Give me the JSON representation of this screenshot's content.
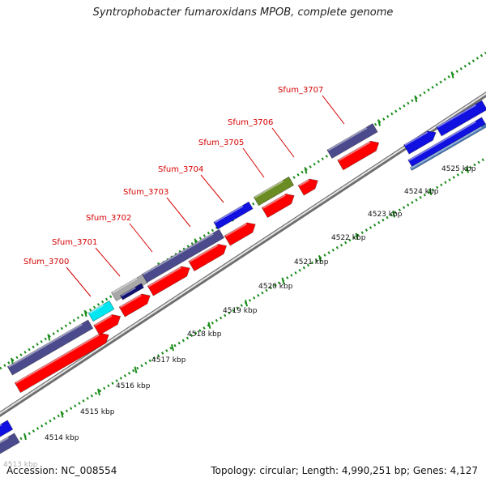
{
  "title": "Syntrophobacter fumaroxidans MPOB, complete genome",
  "footer": {
    "accession": "Accession: NC_008554",
    "stats": "Topology: circular; Length: 4,990,251 bp; Genes: 4,127"
  },
  "colors": {
    "label": "#d40000",
    "gene_red": "#ff0000",
    "gene_slate": "#4a4a8c",
    "gene_blue": "#1010e0",
    "gene_cyan": "#00e6f0",
    "gene_gray": "#a8a8a8",
    "gene_navy": "#101070",
    "gene_olive": "#6b8c23",
    "gene_steel": "#4a7ab8",
    "backbone": "#8c8c8c",
    "tick": "#1a8c1a"
  },
  "gene_labels": [
    "Sfum_3700",
    "Sfum_3701",
    "Sfum_3702",
    "Sfum_3703",
    "Sfum_3704",
    "Sfum_3705",
    "Sfum_3706",
    "Sfum_3707"
  ],
  "kbp_ticks": [
    "4513 kbp",
    "4514 kbp",
    "4515 kbp",
    "4516 kbp",
    "4517 kbp",
    "4518 kbp",
    "4519 kbp",
    "4520 kbp",
    "4521 kbp",
    "4522 kbp",
    "4523 kbp",
    "4524 kbp",
    "4525 kbp"
  ]
}
